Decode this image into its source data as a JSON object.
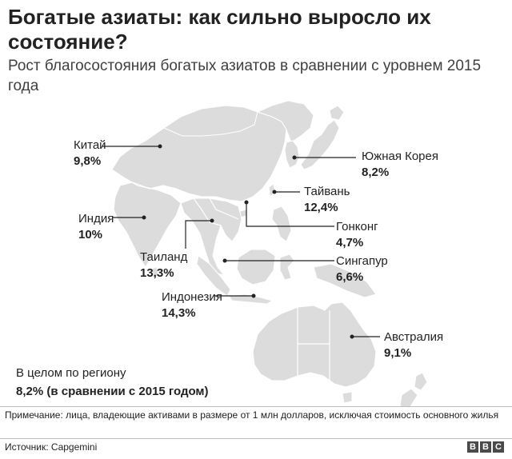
{
  "title": "Богатые азиаты: как сильно выросло их состояние?",
  "subtitle": "Рост благосостояния богатых азиатов в сравнении с уровнем 2015 года",
  "regions": [
    {
      "id": "china",
      "name": "Китай",
      "value": "9,8%"
    },
    {
      "id": "south-korea",
      "name": "Южная Корея",
      "value": "8,2%"
    },
    {
      "id": "taiwan",
      "name": "Тайвань",
      "value": "12,4%"
    },
    {
      "id": "india",
      "name": "Индия",
      "value": "10%"
    },
    {
      "id": "hong-kong",
      "name": "Гонконг",
      "value": "4,7%"
    },
    {
      "id": "thailand",
      "name": "Таиланд",
      "value": "13,3%"
    },
    {
      "id": "singapore",
      "name": "Сингапур",
      "value": "6,6%"
    },
    {
      "id": "indonesia",
      "name": "Индонезия",
      "value": "14,3%"
    },
    {
      "id": "australia",
      "name": "Австралия",
      "value": "9,1%"
    }
  ],
  "summary": {
    "label": "В целом по региону",
    "value": "8,2% (в сравнении с 2015 годом)"
  },
  "note": "Примечание: лица, владеющие активами в размере от 1 млн долларов, исключая стоимость основного жилья",
  "source": "Источник: Capgemini",
  "logo": [
    "B",
    "B",
    "C"
  ],
  "colors": {
    "land": "#dcdcdc",
    "border": "#ffffff",
    "leader": "#222222"
  }
}
